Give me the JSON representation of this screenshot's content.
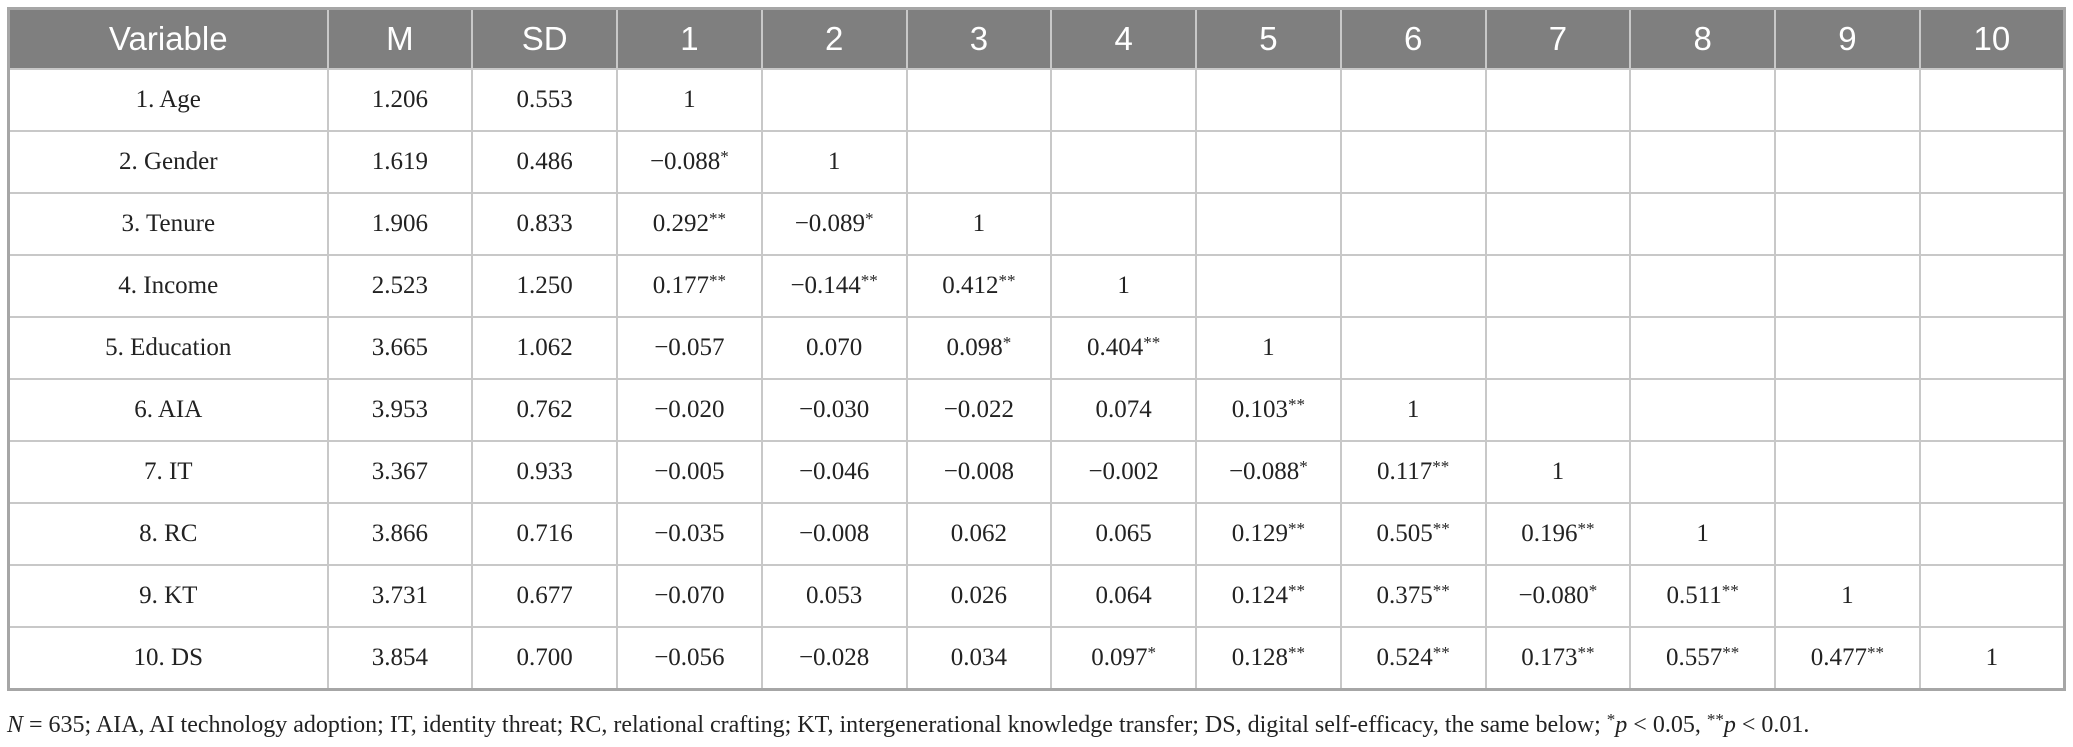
{
  "table": {
    "header": [
      "Variable",
      "M",
      "SD",
      "1",
      "2",
      "3",
      "4",
      "5",
      "6",
      "7",
      "8",
      "9",
      "10"
    ],
    "rows": [
      [
        "1. Age",
        "1.206",
        "0.553",
        "1"
      ],
      [
        "2. Gender",
        "1.619",
        "0.486",
        "−0.088*",
        "1"
      ],
      [
        "3. Tenure",
        "1.906",
        "0.833",
        "0.292**",
        "−0.089*",
        "1"
      ],
      [
        "4. Income",
        "2.523",
        "1.250",
        "0.177**",
        "−0.144**",
        "0.412**",
        "1"
      ],
      [
        "5. Education",
        "3.665",
        "1.062",
        "−0.057",
        "0.070",
        "0.098*",
        "0.404**",
        "1"
      ],
      [
        "6. AIA",
        "3.953",
        "0.762",
        "−0.020",
        "−0.030",
        "−0.022",
        "0.074",
        "0.103**",
        "1"
      ],
      [
        "7. IT",
        "3.367",
        "0.933",
        "−0.005",
        "−0.046",
        "−0.008",
        "−0.002",
        "−0.088*",
        "0.117**",
        "1"
      ],
      [
        "8. RC",
        "3.866",
        "0.716",
        "−0.035",
        "−0.008",
        "0.062",
        "0.065",
        "0.129**",
        "0.505**",
        "0.196**",
        "1"
      ],
      [
        "9. KT",
        "3.731",
        "0.677",
        "−0.070",
        "0.053",
        "0.026",
        "0.064",
        "0.124**",
        "0.375**",
        "−0.080*",
        "0.511**",
        "1"
      ],
      [
        "10. DS",
        "3.854",
        "0.700",
        "−0.056",
        "−0.028",
        "0.034",
        "0.097*",
        "0.128**",
        "0.524**",
        "0.173**",
        "0.557**",
        "0.477**",
        "1"
      ]
    ],
    "note": "N = 635; AIA, AI technology adoption; IT, identity threat; RC, relational crafting; KT, intergenerational knowledge transfer; DS, digital self-efficacy, the same below; *p < 0.05, **p < 0.01."
  }
}
